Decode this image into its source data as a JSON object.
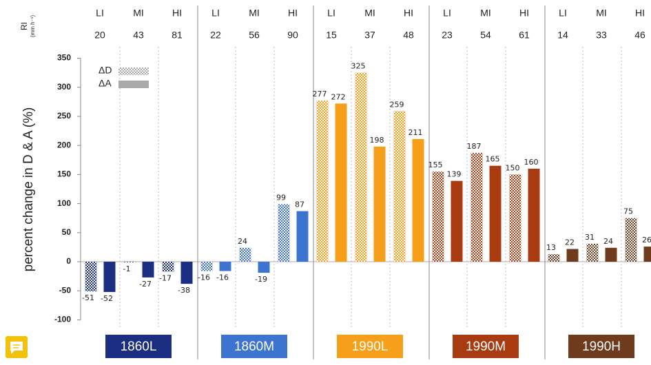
{
  "chart_data": {
    "type": "grouped-bar",
    "y_label": "percent change in D & A (%)",
    "header_label": "RI",
    "header_unit": "(mm h⁻¹)",
    "subcategories": [
      "LI",
      "MI",
      "HI"
    ],
    "legend": [
      "ΔD",
      "ΔA"
    ],
    "ylim": [
      -100,
      350
    ],
    "yticks": [
      -100,
      -50,
      0,
      50,
      100,
      150,
      200,
      250,
      300,
      350
    ],
    "groups": [
      {
        "name": "1860L",
        "color": "#1b2e82",
        "ri": [
          20,
          43,
          81
        ],
        "dD": [
          -51,
          -1,
          -17
        ],
        "dA": [
          -52,
          -27,
          -38
        ]
      },
      {
        "name": "1860M",
        "color": "#3c74cf",
        "ri": [
          22,
          56,
          90
        ],
        "dD": [
          -16,
          24,
          99
        ],
        "dA": [
          -16,
          -19,
          87
        ]
      },
      {
        "name": "1990L",
        "color": "#f59f1b",
        "ri": [
          15,
          37,
          48
        ],
        "dD": [
          277,
          325,
          259
        ],
        "dA": [
          272,
          198,
          211
        ]
      },
      {
        "name": "1990M",
        "color": "#a83c10",
        "ri": [
          23,
          54,
          61
        ],
        "dD": [
          155,
          187,
          150
        ],
        "dA": [
          139,
          165,
          160
        ]
      },
      {
        "name": "1990H",
        "color": "#6e3b1d",
        "ri": [
          14,
          33,
          46
        ],
        "dD": [
          13,
          31,
          75
        ],
        "dA": [
          22,
          24,
          26
        ]
      }
    ]
  }
}
